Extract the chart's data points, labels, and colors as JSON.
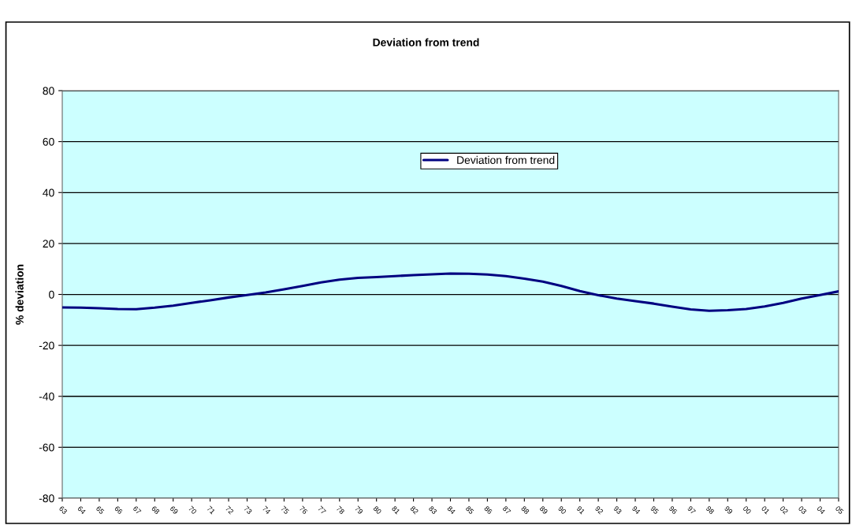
{
  "chart_data": {
    "type": "line",
    "title": "Deviation from trend",
    "ylabel": "% deviation",
    "categories": [
      "63",
      "64",
      "65",
      "66",
      "67",
      "68",
      "69",
      "70",
      "71",
      "72",
      "73",
      "74",
      "75",
      "76",
      "77",
      "78",
      "79",
      "80",
      "81",
      "82",
      "83",
      "84",
      "85",
      "86",
      "87",
      "88",
      "89",
      "90",
      "91",
      "92",
      "93",
      "94",
      "95",
      "96",
      "97",
      "98",
      "99",
      "00",
      "01",
      "02",
      "03",
      "04",
      "05"
    ],
    "series": [
      {
        "name": "Deviation from trend",
        "color": "#000080",
        "values": [
          -5.1,
          -5.2,
          -5.4,
          -5.7,
          -5.8,
          -5.2,
          -4.4,
          -3.3,
          -2.3,
          -1.2,
          -0.2,
          0.8,
          2.0,
          3.3,
          4.7,
          5.8,
          6.5,
          6.8,
          7.2,
          7.6,
          7.9,
          8.2,
          8.1,
          7.8,
          7.2,
          6.2,
          5.0,
          3.3,
          1.3,
          -0.3,
          -1.6,
          -2.6,
          -3.6,
          -4.8,
          -5.9,
          -6.4,
          -6.2,
          -5.7,
          -4.7,
          -3.3,
          -1.6,
          -0.2,
          1.2
        ]
      }
    ],
    "ylim": [
      -80,
      80
    ],
    "yticks": [
      -80,
      -60,
      -40,
      -20,
      0,
      20,
      40,
      60,
      80
    ],
    "grid": "y",
    "legend": "top",
    "marker": "none",
    "line_style": "solid"
  }
}
